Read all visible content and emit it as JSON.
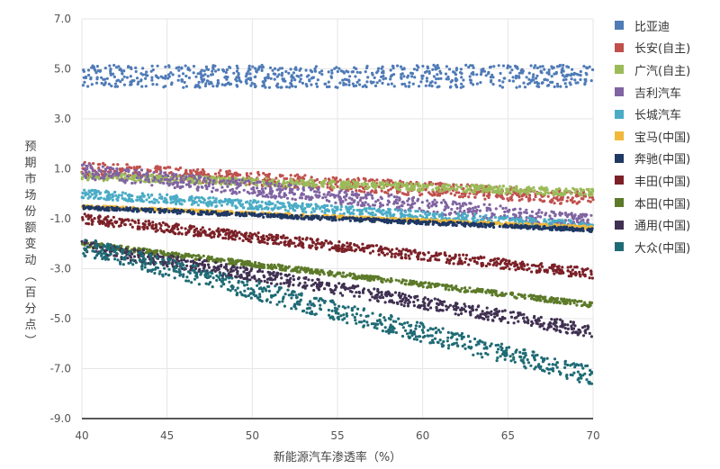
{
  "chart_data": {
    "type": "scatter",
    "xlabel": "新能源汽车渗透率（%）",
    "ylabel": "预期市场份额变动（百分点）",
    "xlim": [
      40,
      70
    ],
    "ylim": [
      -9,
      7
    ],
    "x_ticks": [
      "40",
      "45",
      "50",
      "55",
      "60",
      "65",
      "70"
    ],
    "y_ticks": [
      "7.0",
      "5.0",
      "3.0",
      "1.0",
      "-1.0",
      "-3.0",
      "-5.0",
      "-7.0",
      "-9.0"
    ],
    "grid": true,
    "legend_position": "right",
    "series": [
      {
        "name": "比亚迪",
        "color": "#4f7bb7",
        "y_at_40": 4.7,
        "y_at_70": 4.7,
        "band_width": 0.9
      },
      {
        "name": "长安(自主)",
        "color": "#c0504d",
        "y_at_40": 1.0,
        "y_at_70": -0.2,
        "band_width": 0.55
      },
      {
        "name": "广汽(自主)",
        "color": "#9bbb59",
        "y_at_40": 0.7,
        "y_at_70": 0.05,
        "band_width": 0.3
      },
      {
        "name": "吉利汽车",
        "color": "#8064a2",
        "y_at_40": 0.9,
        "y_at_70": -1.15,
        "band_width": 0.6
      },
      {
        "name": "长城汽车",
        "color": "#4bacc6",
        "y_at_40": 0.0,
        "y_at_70": -1.3,
        "band_width": 0.35
      },
      {
        "name": "宝马(中国)",
        "color": "#f0b93a",
        "y_at_40": -0.5,
        "y_at_70": -1.35,
        "band_width": 0.1
      },
      {
        "name": "奔驰(中国)",
        "color": "#1f3864",
        "y_at_40": -0.55,
        "y_at_70": -1.45,
        "band_width": 0.15
      },
      {
        "name": "丰田(中国)",
        "color": "#7b2027",
        "y_at_40": -1.0,
        "y_at_70": -3.2,
        "band_width": 0.4
      },
      {
        "name": "本田(中国)",
        "color": "#5c7a29",
        "y_at_40": -2.0,
        "y_at_70": -4.45,
        "band_width": 0.2
      },
      {
        "name": "通用(中国)",
        "color": "#403152",
        "y_at_40": -2.1,
        "y_at_70": -5.5,
        "band_width": 0.5
      },
      {
        "name": "大众(中国)",
        "color": "#1f6b75",
        "y_at_40": -2.1,
        "y_at_70": -7.3,
        "band_width": 0.75
      }
    ]
  }
}
